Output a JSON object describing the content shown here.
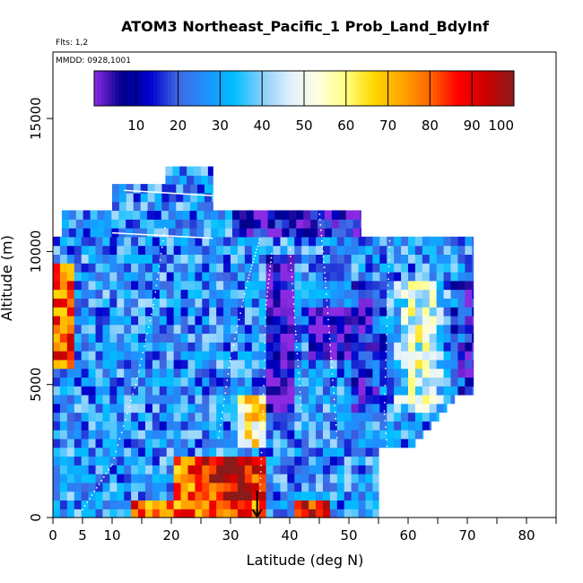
{
  "chart_data": {
    "type": "heatmap",
    "title": "ATOM3 Northeast_Pacific_1 Prob_Land_BdyInf",
    "subtitle_flights": "Flts: 1,2",
    "subtitle_dates": "MMDD: 0928,1001",
    "xlabel": "Latitude (deg N)",
    "ylabel": "Altitude (m)",
    "xlim": [
      0,
      85
    ],
    "ylim": [
      0,
      17500
    ],
    "x_ticks": [
      0,
      5,
      10,
      20,
      30,
      40,
      50,
      60,
      70,
      80
    ],
    "y_ticks": [
      0,
      5000,
      10000,
      15000
    ],
    "colorbar": {
      "range": [
        0,
        100
      ],
      "ticks": [
        10,
        20,
        30,
        40,
        50,
        60,
        70,
        80,
        90,
        100
      ],
      "colors": [
        "#8a2be2",
        "#00008b",
        "#0000cd",
        "#4169e1",
        "#1e90ff",
        "#00bfff",
        "#87cefa",
        "#e0f0ff",
        "#ffffe0",
        "#ffff80",
        "#ffd700",
        "#ffa500",
        "#ff6600",
        "#ff0000",
        "#cd0000",
        "#8b1a1a"
      ]
    },
    "marker_latitude": 34.5
  },
  "colors": {
    "frame": "#000000",
    "background": "#ffffff"
  }
}
